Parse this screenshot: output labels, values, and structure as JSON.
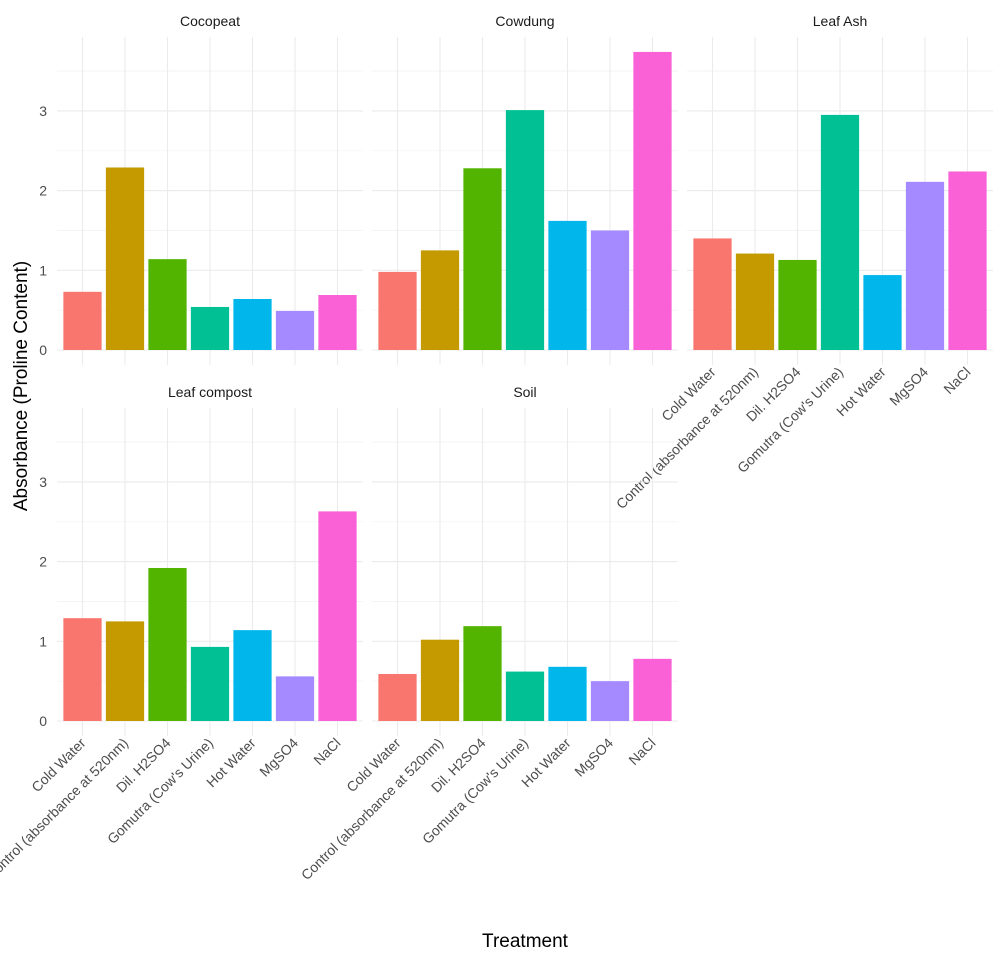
{
  "chart_data": {
    "type": "bar",
    "facet": "wrap",
    "title": "",
    "xlabel": "Treatment",
    "ylabel": "Absorbance (Proline Content)",
    "ylim": [
      0,
      3.74
    ],
    "y_ticks": [
      0,
      1,
      2,
      3
    ],
    "grid": true,
    "legend": "none",
    "categories": [
      "Cold Water",
      "Control (absorbance at 520nm)",
      "Dil. H2SO4",
      "Gomutra (Cow's Urine)",
      "Hot Water",
      "MgSO4",
      "NaCl"
    ],
    "colors": [
      "#F8766D",
      "#C49A00",
      "#53B400",
      "#00C094",
      "#00B6EB",
      "#A58AFF",
      "#FB61D7"
    ],
    "panels": [
      {
        "name": "Cocopeat",
        "values": [
          0.73,
          2.29,
          1.14,
          0.54,
          0.64,
          0.49,
          0.69
        ]
      },
      {
        "name": "Cowdung",
        "values": [
          0.98,
          1.25,
          2.28,
          3.01,
          1.62,
          1.5,
          3.74
        ]
      },
      {
        "name": "Leaf Ash",
        "values": [
          1.4,
          1.21,
          1.13,
          2.95,
          0.94,
          2.11,
          2.24
        ]
      },
      {
        "name": "Leaf compost",
        "values": [
          1.29,
          1.25,
          1.92,
          0.93,
          1.14,
          0.56,
          2.63
        ]
      },
      {
        "name": "Soil",
        "values": [
          0.59,
          1.02,
          1.19,
          0.62,
          0.68,
          0.5,
          0.78
        ]
      }
    ]
  }
}
